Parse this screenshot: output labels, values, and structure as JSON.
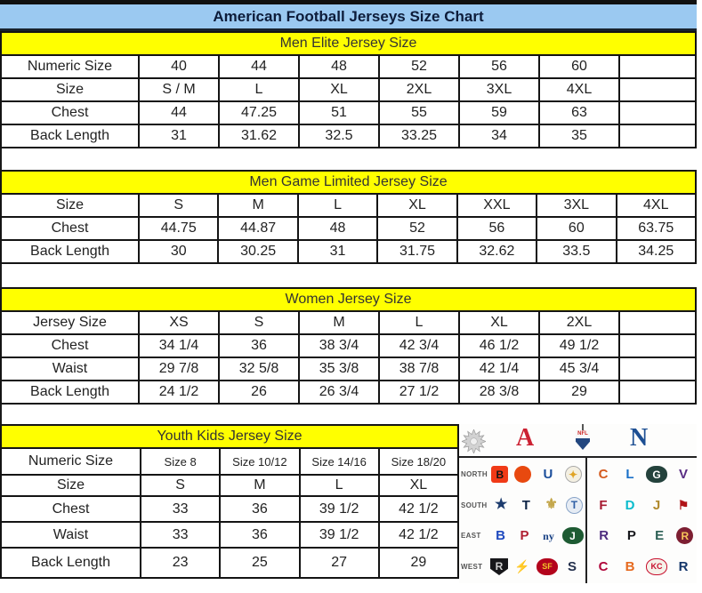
{
  "page": {
    "title": "American Football Jerseys Size Chart"
  },
  "tables": [
    {
      "header": "Men Elite Jersey Size",
      "rows": [
        {
          "label": "Numeric Size",
          "cells": [
            "40",
            "44",
            "48",
            "52",
            "56",
            "60",
            ""
          ]
        },
        {
          "label": "Size",
          "cells": [
            "S / M",
            "L",
            "XL",
            "2XL",
            "3XL",
            "4XL",
            ""
          ]
        },
        {
          "label": "Chest",
          "cells": [
            "44",
            "47.25",
            "51",
            "55",
            "59",
            "63",
            ""
          ]
        },
        {
          "label": "Back Length",
          "cells": [
            "31",
            "31.62",
            "32.5",
            "33.25",
            "34",
            "35",
            ""
          ]
        }
      ]
    },
    {
      "header": "Men Game Limited Jersey Size",
      "rows": [
        {
          "label": "Size",
          "cells": [
            "S",
            "M",
            "L",
            "XL",
            "XXL",
            "3XL",
            "4XL"
          ]
        },
        {
          "label": "Chest",
          "cells": [
            "44.75",
            "44.87",
            "48",
            "52",
            "56",
            "60",
            "63.75"
          ]
        },
        {
          "label": "Back Length",
          "cells": [
            "30",
            "30.25",
            "31",
            "31.75",
            "32.62",
            "33.5",
            "34.25"
          ]
        }
      ]
    },
    {
      "header": "Women Jersey Size",
      "rows": [
        {
          "label": "Jersey Size",
          "cells": [
            "XS",
            "S",
            "M",
            "L",
            "XL",
            "2XL",
            ""
          ]
        },
        {
          "label": "Chest",
          "cells": [
            "34 1/4",
            "36",
            "38 3/4",
            "42 3/4",
            "46 1/2",
            "49 1/2",
            ""
          ]
        },
        {
          "label": "Waist",
          "cells": [
            "29 7/8",
            "32 5/8",
            "35 3/8",
            "38 7/8",
            "42 1/4",
            "45 3/4",
            ""
          ]
        },
        {
          "label": "Back Length",
          "cells": [
            "24 1/2",
            "26",
            "26 3/4",
            "27 1/2",
            "28 3/8",
            "29",
            ""
          ]
        }
      ]
    },
    {
      "header": "Youth Kids Jersey Size",
      "rows": [
        {
          "label": "Numeric Size",
          "cells": [
            "Size 8",
            "Size 10/12",
            "Size 14/16",
            "Size 18/20"
          ]
        },
        {
          "label": "Size",
          "cells": [
            "S",
            "M",
            "L",
            "XL"
          ]
        },
        {
          "label": "Chest",
          "cells": [
            "33",
            "36",
            "39 1/2",
            "42 1/2"
          ]
        },
        {
          "label": "Waist",
          "cells": [
            "33",
            "36",
            "39 1/2",
            "42 1/2"
          ]
        },
        {
          "label": "Back Length",
          "cells": [
            "23",
            "25",
            "27",
            "29"
          ]
        }
      ]
    }
  ],
  "colors": {
    "title_bg": "#9bc9f1",
    "title_text": "#0d1c3a",
    "band_bg": "#ffff00",
    "band_text": "#333333",
    "border": "#141414",
    "afc_red": "#cc2233",
    "nfc_blue": "#1d4f93"
  },
  "nfl_panel": {
    "header": {
      "starburst_icon": "starburst",
      "afc_label": "A",
      "shield_label": "NFL",
      "nfc_label": "N"
    },
    "divisions": [
      {
        "label": "NORTH",
        "afc": [
          "Bengals",
          "Browns",
          "Colts",
          "Steelers"
        ],
        "nfc": [
          "Bears",
          "Lions",
          "Packers",
          "Vikings"
        ]
      },
      {
        "label": "SOUTH",
        "afc": [
          "Cowboys",
          "Texans",
          "Saints",
          "Titans"
        ],
        "nfc": [
          "Falcons",
          "Dolphins",
          "Jaguars",
          "Buccaneers"
        ]
      },
      {
        "label": "EAST",
        "afc": [
          "Bills",
          "Patriots",
          "Giants",
          "Jets"
        ],
        "nfc": [
          "Ravens",
          "Panthers",
          "Eagles",
          "Redskins"
        ]
      },
      {
        "label": "WEST",
        "afc": [
          "Raiders",
          "Chargers",
          "49ers",
          "Seahawks"
        ],
        "nfc": [
          "Cardinals",
          "Broncos",
          "Chiefs",
          "Rams"
        ]
      }
    ],
    "team_logos": {
      "Bengals": {
        "shape": "square",
        "bg": "#f03a17",
        "fg": "#141414",
        "glyph": "B"
      },
      "Browns": {
        "shape": "circle",
        "bg": "#e8490f",
        "fg": "#ffffff",
        "glyph": ""
      },
      "Colts": {
        "shape": "glyph",
        "fg": "#1b4e9b",
        "glyph": "U"
      },
      "Steelers": {
        "shape": "circle",
        "bg": "#f4f0e2",
        "fg": "#e0a426",
        "glyph": "✦",
        "br": "#aaaaaa"
      },
      "Bears": {
        "shape": "glyph",
        "fg": "#d45a1e",
        "glyph": "C"
      },
      "Lions": {
        "shape": "glyph",
        "fg": "#1a71c8",
        "glyph": "L"
      },
      "Packers": {
        "shape": "oval",
        "bg": "#24423c",
        "fg": "#ffffff",
        "glyph": "G"
      },
      "Vikings": {
        "shape": "glyph",
        "fg": "#582c83",
        "glyph": "V"
      },
      "Cowboys": {
        "shape": "glyph",
        "fg": "#1d3c6e",
        "glyph": "★",
        "fs": 16
      },
      "Texans": {
        "shape": "glyph",
        "fg": "#0b2244",
        "glyph": "T"
      },
      "Saints": {
        "shape": "glyph",
        "fg": "#c3a64a",
        "glyph": "⚜",
        "fs": 16
      },
      "Titans": {
        "shape": "circle",
        "bg": "#e6ecf4",
        "fg": "#2f5fa5",
        "glyph": "T",
        "br": "#8aa5c8"
      },
      "Falcons": {
        "shape": "glyph",
        "fg": "#a71930",
        "glyph": "F"
      },
      "Dolphins": {
        "shape": "glyph",
        "fg": "#0abccd",
        "glyph": "D"
      },
      "Jaguars": {
        "shape": "glyph",
        "fg": "#b08a2e",
        "glyph": "J"
      },
      "Buccaneers": {
        "shape": "glyph",
        "fg": "#b01317",
        "glyph": "⚑",
        "fs": 14
      },
      "Bills": {
        "shape": "glyph",
        "fg": "#1f4abf",
        "glyph": "B"
      },
      "Patriots": {
        "shape": "glyph",
        "fg": "#b02032",
        "glyph": "P"
      },
      "Giants": {
        "shape": "glyph",
        "fg": "#163f83",
        "glyph": "ny",
        "fs": 12,
        "serif": true
      },
      "Jets": {
        "shape": "oval",
        "bg": "#1e5b33",
        "fg": "#ffffff",
        "glyph": "J"
      },
      "Ravens": {
        "shape": "glyph",
        "fg": "#4d2b7e",
        "glyph": "R"
      },
      "Panthers": {
        "shape": "glyph",
        "fg": "#17181c",
        "glyph": "P"
      },
      "Eagles": {
        "shape": "glyph",
        "fg": "#2c5f54",
        "glyph": "E"
      },
      "Redskins": {
        "shape": "circle",
        "bg": "#7d1f32",
        "fg": "#f7c65a",
        "glyph": "R"
      },
      "Raiders": {
        "shape": "shieldchip",
        "bg": "#17171a",
        "fg": "#cfcfcf",
        "glyph": "R"
      },
      "Chargers": {
        "shape": "glyph",
        "fg": "#f2b31c",
        "glyph": "⚡",
        "fs": 14
      },
      "49ers": {
        "shape": "oval",
        "bg": "#b3041c",
        "fg": "#f0c22b",
        "glyph": "SF",
        "fs": 9
      },
      "Seahawks": {
        "shape": "glyph",
        "fg": "#24304c",
        "glyph": "S"
      },
      "Cardinals": {
        "shape": "glyph",
        "fg": "#b0063a",
        "glyph": "C"
      },
      "Broncos": {
        "shape": "glyph",
        "fg": "#e66a1f",
        "glyph": "B"
      },
      "Chiefs": {
        "shape": "oval",
        "bg": "#f5f2ea",
        "fg": "#c8102e",
        "glyph": "KC",
        "fs": 9,
        "br": "#c8102e"
      },
      "Rams": {
        "shape": "glyph",
        "fg": "#133569",
        "glyph": "R"
      }
    }
  }
}
